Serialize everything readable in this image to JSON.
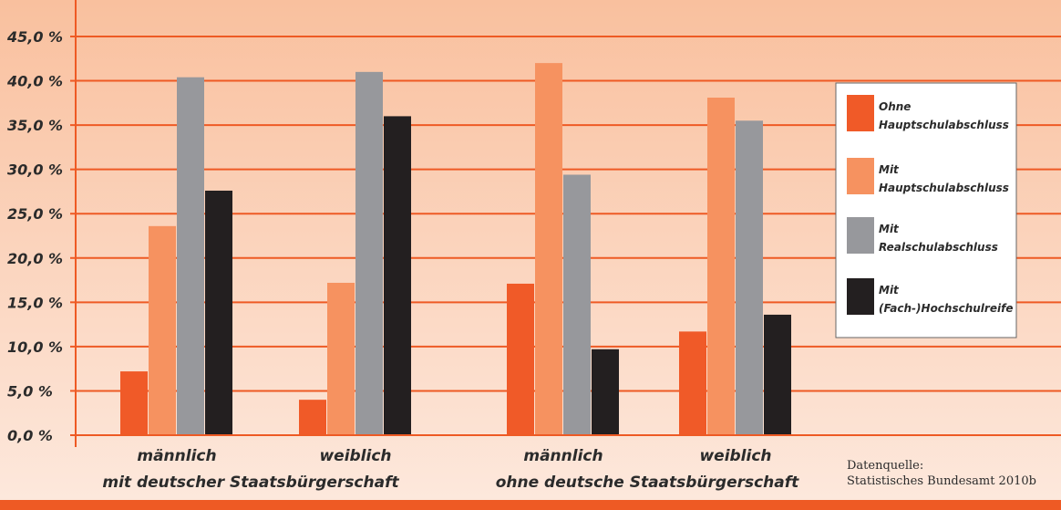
{
  "chart_data": {
    "type": "bar",
    "y_unit_suffix": " %",
    "ylim": [
      0,
      45
    ],
    "y_ticks": [
      "0,0 %",
      "5,0 %",
      "10,0 %",
      "15,0 %",
      "20,0 %",
      "25,0 %",
      "30,0 %",
      "35,0 %",
      "40,0 %",
      "45,0 %"
    ],
    "categories": [
      "männlich",
      "weiblich",
      "männlich",
      "weiblich"
    ],
    "category_groups": [
      {
        "label": "mit deutscher Staatsbürgerschaft",
        "categories": [
          0,
          1
        ]
      },
      {
        "label": "ohne deutsche Staatsbürgerschaft",
        "categories": [
          2,
          3
        ]
      }
    ],
    "series": [
      {
        "name_line1": "Ohne",
        "name_line2": "Hauptschulabschluss",
        "color": "#f05a28",
        "values": [
          7.2,
          4.0,
          17.1,
          11.7
        ]
      },
      {
        "name_line1": "Mit",
        "name_line2": "Hauptschulabschluss",
        "color": "#f69260",
        "values": [
          23.6,
          17.2,
          42.0,
          38.1
        ]
      },
      {
        "name_line1": "Mit",
        "name_line2": "Realschulabschluss",
        "color": "#97989c",
        "values": [
          40.4,
          41.0,
          29.4,
          35.5
        ]
      },
      {
        "name_line1": "Mit",
        "name_line2": "(Fach-)Hochschulreife",
        "color": "#231f20",
        "values": [
          27.6,
          36.0,
          9.7,
          13.6
        ]
      }
    ],
    "grid": true,
    "legend_position": "right",
    "background_top": "#f9c09e",
    "background_bottom": "#fde8dc",
    "axis_color": "#ee5a24"
  },
  "source": {
    "line1": "Datenquelle:",
    "line2": "Statistisches Bundesamt 2010b"
  }
}
